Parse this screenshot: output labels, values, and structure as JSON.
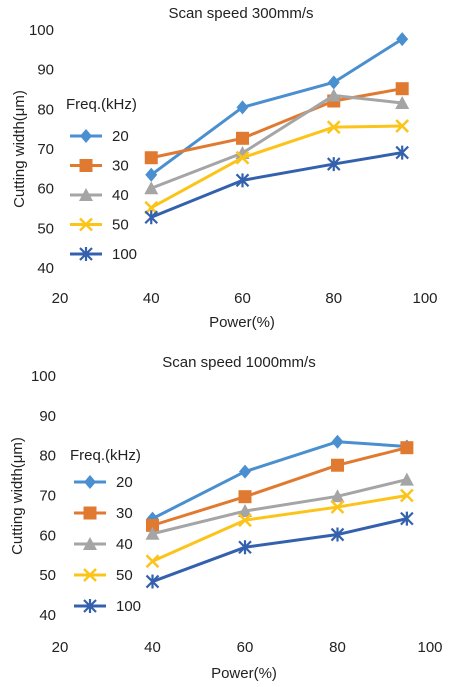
{
  "chart_data": [
    {
      "type": "line",
      "title": "Scan speed 300mm/s",
      "xlabel": "Power(%)",
      "ylabel": "Cutting width(μm)",
      "xlim": [
        20,
        100
      ],
      "ylim": [
        40,
        100
      ],
      "xticks": [
        "20",
        "40",
        "60",
        "80",
        "100"
      ],
      "yticks": [
        "40",
        "50",
        "60",
        "70",
        "80",
        "90",
        "100"
      ],
      "grid": false,
      "legend_title": "Freq.(kHz)",
      "legend_position": "left",
      "x": [
        40,
        60,
        80,
        95
      ],
      "series": [
        {
          "name": "20",
          "color": "#4a8fd0",
          "marker": "diamond",
          "values": [
            63.5,
            80.5,
            86.8,
            97.7
          ]
        },
        {
          "name": "30",
          "color": "#e07a30",
          "marker": "square",
          "values": [
            67.8,
            72.7,
            82.1,
            85.2
          ]
        },
        {
          "name": "40",
          "color": "#a5a5a5",
          "marker": "triangle",
          "values": [
            60.1,
            69.0,
            83.5,
            81.6
          ]
        },
        {
          "name": "50",
          "color": "#fcc419",
          "marker": "x",
          "values": [
            55.2,
            67.8,
            75.5,
            75.8
          ]
        },
        {
          "name": "100",
          "color": "#3461ad",
          "marker": "star",
          "values": [
            52.8,
            62.1,
            66.2,
            69.1
          ]
        }
      ]
    },
    {
      "type": "line",
      "title": "Scan speed 1000mm/s",
      "xlabel": "Power(%)",
      "ylabel": "Cutting width(μm)",
      "xlim": [
        20,
        100
      ],
      "ylim": [
        40,
        100
      ],
      "xticks": [
        "20",
        "40",
        "60",
        "80",
        "100"
      ],
      "yticks": [
        "40",
        "50",
        "60",
        "70",
        "80",
        "90",
        "100"
      ],
      "grid": false,
      "legend_title": "Freq.(kHz)",
      "legend_position": "left",
      "x": [
        40,
        60,
        80,
        95
      ],
      "series": [
        {
          "name": "20",
          "color": "#4a8fd0",
          "marker": "diamond",
          "values": [
            64.2,
            76.0,
            83.5,
            82.3
          ]
        },
        {
          "name": "30",
          "color": "#e07a30",
          "marker": "square",
          "values": [
            62.5,
            69.7,
            77.6,
            82.0
          ]
        },
        {
          "name": "40",
          "color": "#a5a5a5",
          "marker": "triangle",
          "values": [
            60.4,
            66.1,
            69.8,
            74.0
          ]
        },
        {
          "name": "50",
          "color": "#fcc419",
          "marker": "x",
          "values": [
            53.5,
            63.8,
            67.1,
            70.0
          ]
        },
        {
          "name": "100",
          "color": "#3461ad",
          "marker": "star",
          "values": [
            48.4,
            57.0,
            60.2,
            64.2
          ]
        }
      ]
    }
  ]
}
